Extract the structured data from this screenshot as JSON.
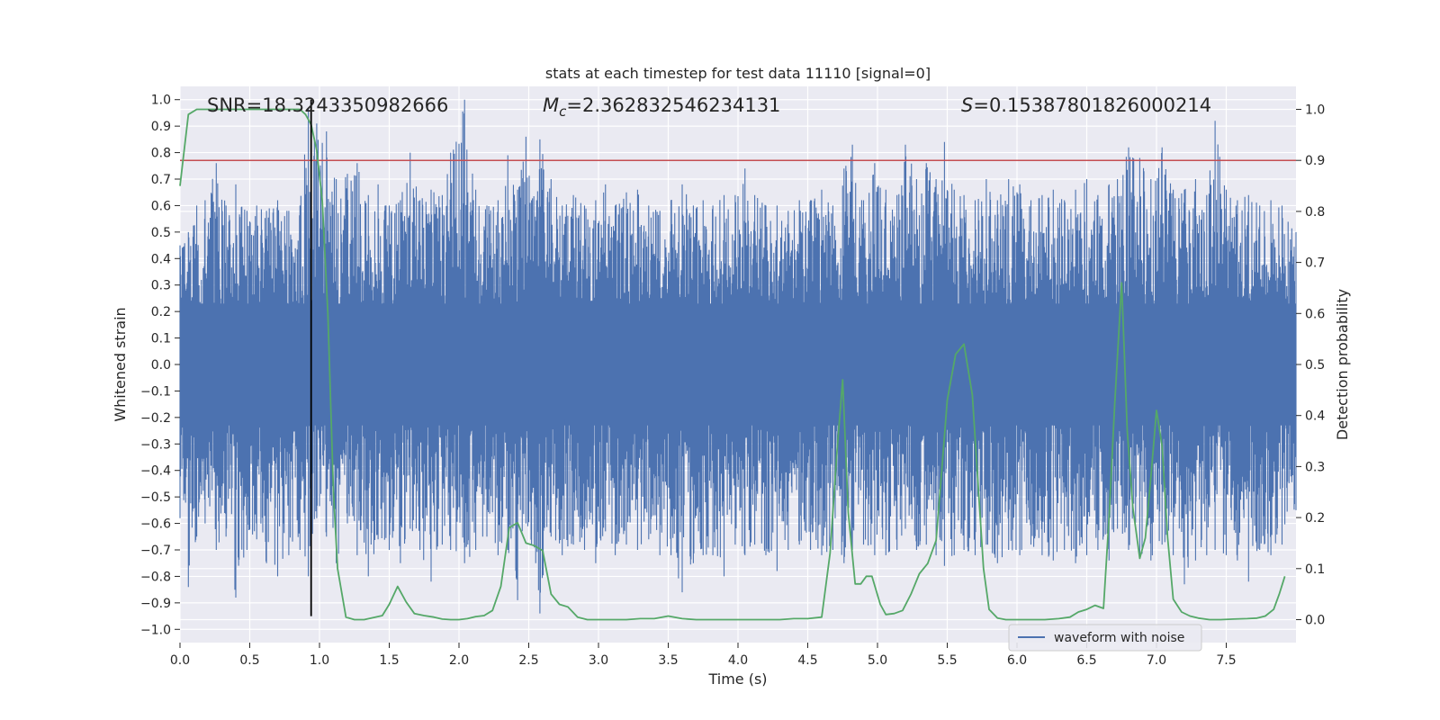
{
  "chart_data": {
    "type": "line",
    "title": "stats at each timestep for test data 11110 [signal=0]",
    "xlabel": "Time (s)",
    "ylabel": "Whitened strain",
    "y2label": "Detection probability",
    "xlim": [
      0.0,
      8.0
    ],
    "ylim": [
      -1.05,
      1.05
    ],
    "y2lim": [
      -0.045,
      1.045
    ],
    "xticks": [
      "0.0",
      "0.5",
      "1.0",
      "1.5",
      "2.0",
      "2.5",
      "3.0",
      "3.5",
      "4.0",
      "4.5",
      "5.0",
      "5.5",
      "6.0",
      "6.5",
      "7.0",
      "7.5"
    ],
    "xtick_values": [
      0.0,
      0.5,
      1.0,
      1.5,
      2.0,
      2.5,
      3.0,
      3.5,
      4.0,
      4.5,
      5.0,
      5.5,
      6.0,
      6.5,
      7.0,
      7.5
    ],
    "yticks": [
      "−1.0",
      "−0.9",
      "−0.8",
      "−0.7",
      "−0.6",
      "−0.5",
      "−0.4",
      "−0.3",
      "−0.2",
      "−0.1",
      "0.0",
      "0.1",
      "0.2",
      "0.3",
      "0.4",
      "0.5",
      "0.6",
      "0.7",
      "0.8",
      "0.9",
      "1.0"
    ],
    "ytick_values": [
      -1.0,
      -0.9,
      -0.8,
      -0.7,
      -0.6,
      -0.5,
      -0.4,
      -0.3,
      -0.2,
      -0.1,
      0.0,
      0.1,
      0.2,
      0.3,
      0.4,
      0.5,
      0.6,
      0.7,
      0.8,
      0.9,
      1.0
    ],
    "y2ticks": [
      "0.0",
      "0.1",
      "0.2",
      "0.3",
      "0.4",
      "0.5",
      "0.6",
      "0.7",
      "0.8",
      "0.9",
      "1.0"
    ],
    "y2tick_values": [
      0.0,
      0.1,
      0.2,
      0.3,
      0.4,
      0.5,
      0.6,
      0.7,
      0.8,
      0.9,
      1.0
    ],
    "annotations": {
      "snr": "SNR=18.3243350982666",
      "mc_prefix": "M",
      "mc_sub": "c",
      "mc_value": "=2.362832546234131",
      "s_prefix": "S",
      "s_value": "=0.15387801826000214"
    },
    "legend": {
      "label": "waveform with noise",
      "position": "lower-right"
    },
    "threshold_line": {
      "y2": 0.9,
      "color": "#c44e52"
    },
    "marker_line": {
      "x": 0.94,
      "y_from": -0.95,
      "y_to": 1.0,
      "color": "#000000"
    },
    "waveform": {
      "name": "waveform with noise",
      "color": "#4c72b0",
      "envelope_peaks": [
        [
          0.0,
          0.45,
          -0.58
        ],
        [
          0.06,
          0.5,
          -0.84
        ],
        [
          0.12,
          0.6,
          -0.65
        ],
        [
          0.18,
          0.62,
          -0.6
        ],
        [
          0.26,
          0.76,
          -0.7
        ],
        [
          0.33,
          0.6,
          -0.65
        ],
        [
          0.4,
          0.68,
          -0.88
        ],
        [
          0.48,
          0.58,
          -0.7
        ],
        [
          0.55,
          0.6,
          -0.66
        ],
        [
          0.62,
          0.58,
          -0.75
        ],
        [
          0.7,
          0.62,
          -0.8
        ],
        [
          0.78,
          0.58,
          -0.72
        ],
        [
          0.86,
          0.6,
          -0.7
        ],
        [
          0.92,
          0.97,
          -0.8
        ],
        [
          0.98,
          0.91,
          -0.58
        ],
        [
          1.05,
          0.88,
          -0.65
        ],
        [
          1.12,
          0.7,
          -0.75
        ],
        [
          1.2,
          0.72,
          -0.6
        ],
        [
          1.27,
          0.76,
          -0.72
        ],
        [
          1.35,
          0.64,
          -0.8
        ],
        [
          1.42,
          0.68,
          -0.66
        ],
        [
          1.5,
          0.6,
          -0.7
        ],
        [
          1.58,
          0.62,
          -0.75
        ],
        [
          1.65,
          0.8,
          -0.62
        ],
        [
          1.72,
          0.62,
          -0.7
        ],
        [
          1.8,
          0.66,
          -0.82
        ],
        [
          1.88,
          0.64,
          -0.68
        ],
        [
          1.94,
          0.8,
          -0.7
        ],
        [
          2.04,
          1.0,
          -0.75
        ],
        [
          2.12,
          0.66,
          -0.7
        ],
        [
          2.2,
          0.6,
          -0.65
        ],
        [
          2.28,
          0.62,
          -0.72
        ],
        [
          2.35,
          0.79,
          -0.7
        ],
        [
          2.42,
          0.66,
          -0.89
        ],
        [
          2.48,
          0.86,
          -0.6
        ],
        [
          2.52,
          0.62,
          -0.68
        ],
        [
          2.58,
          0.85,
          -0.94
        ],
        [
          2.66,
          0.7,
          -0.65
        ],
        [
          2.74,
          0.6,
          -0.72
        ],
        [
          2.82,
          0.64,
          -0.68
        ],
        [
          2.9,
          0.6,
          -0.7
        ],
        [
          2.98,
          0.62,
          -0.75
        ],
        [
          3.05,
          0.68,
          -0.63
        ],
        [
          3.12,
          0.6,
          -0.72
        ],
        [
          3.2,
          0.65,
          -0.68
        ],
        [
          3.28,
          0.66,
          -0.7
        ],
        [
          3.36,
          0.6,
          -0.66
        ],
        [
          3.44,
          0.58,
          -0.72
        ],
        [
          3.52,
          0.62,
          -0.72
        ],
        [
          3.6,
          0.68,
          -0.86
        ],
        [
          3.68,
          0.6,
          -0.75
        ],
        [
          3.75,
          0.62,
          -0.72
        ],
        [
          3.82,
          0.6,
          -0.72
        ],
        [
          3.9,
          0.64,
          -0.8
        ],
        [
          3.98,
          0.64,
          -0.68
        ],
        [
          4.05,
          0.74,
          -0.72
        ],
        [
          4.12,
          0.64,
          -0.68
        ],
        [
          4.2,
          0.6,
          -0.72
        ],
        [
          4.28,
          0.6,
          -0.78
        ],
        [
          4.36,
          0.58,
          -0.7
        ],
        [
          4.44,
          0.62,
          -0.68
        ],
        [
          4.52,
          0.62,
          -0.7
        ],
        [
          4.6,
          0.66,
          -0.72
        ],
        [
          4.68,
          0.6,
          -0.7
        ],
        [
          4.76,
          0.74,
          -0.75
        ],
        [
          4.82,
          0.83,
          -0.7
        ],
        [
          4.9,
          0.62,
          -0.68
        ],
        [
          4.98,
          0.76,
          -0.72
        ],
        [
          5.06,
          0.66,
          -0.72
        ],
        [
          5.14,
          0.64,
          -0.7
        ],
        [
          5.2,
          0.83,
          -0.62
        ],
        [
          5.28,
          0.7,
          -0.7
        ],
        [
          5.35,
          0.76,
          -0.68
        ],
        [
          5.42,
          0.7,
          -0.72
        ],
        [
          5.48,
          0.84,
          -0.76
        ],
        [
          5.55,
          0.66,
          -0.72
        ],
        [
          5.62,
          0.64,
          -0.7
        ],
        [
          5.7,
          0.62,
          -0.72
        ],
        [
          5.78,
          0.7,
          -0.68
        ],
        [
          5.86,
          0.62,
          -0.75
        ],
        [
          5.94,
          0.7,
          -0.7
        ],
        [
          6.02,
          0.68,
          -0.72
        ],
        [
          6.1,
          0.62,
          -0.68
        ],
        [
          6.18,
          0.64,
          -0.72
        ],
        [
          6.26,
          0.66,
          -0.74
        ],
        [
          6.34,
          0.62,
          -0.7
        ],
        [
          6.42,
          0.66,
          -0.75
        ],
        [
          6.5,
          0.7,
          -0.72
        ],
        [
          6.58,
          0.64,
          -0.7
        ],
        [
          6.66,
          0.68,
          -0.74
        ],
        [
          6.72,
          0.7,
          -0.62
        ],
        [
          6.8,
          0.82,
          -0.7
        ],
        [
          6.88,
          0.78,
          -0.72
        ],
        [
          6.96,
          0.7,
          -0.74
        ],
        [
          7.04,
          0.82,
          -0.68
        ],
        [
          7.12,
          0.66,
          -0.72
        ],
        [
          7.2,
          0.66,
          -0.83
        ],
        [
          7.28,
          0.7,
          -0.74
        ],
        [
          7.36,
          0.64,
          -0.72
        ],
        [
          7.42,
          0.92,
          -0.7
        ],
        [
          7.5,
          0.66,
          -0.72
        ],
        [
          7.58,
          0.62,
          -0.74
        ],
        [
          7.66,
          0.64,
          -0.82
        ],
        [
          7.74,
          0.6,
          -0.7
        ],
        [
          7.82,
          0.62,
          -0.72
        ],
        [
          7.9,
          0.6,
          -0.68
        ],
        [
          8.0,
          0.5,
          -0.55
        ]
      ]
    },
    "probability": {
      "color": "#55a868",
      "points": [
        [
          0.0,
          0.85
        ],
        [
          0.06,
          0.99
        ],
        [
          0.12,
          1.0
        ],
        [
          0.2,
          1.0
        ],
        [
          0.3,
          1.0
        ],
        [
          0.4,
          1.0
        ],
        [
          0.5,
          1.0
        ],
        [
          0.6,
          1.0
        ],
        [
          0.7,
          1.0
        ],
        [
          0.8,
          1.0
        ],
        [
          0.86,
          1.0
        ],
        [
          0.9,
          0.99
        ],
        [
          0.94,
          0.97
        ],
        [
          0.98,
          0.92
        ],
        [
          1.02,
          0.82
        ],
        [
          1.06,
          0.6
        ],
        [
          1.1,
          0.25
        ],
        [
          1.13,
          0.1
        ],
        [
          1.19,
          0.005
        ],
        [
          1.25,
          0.0
        ],
        [
          1.32,
          0.0
        ],
        [
          1.4,
          0.005
        ],
        [
          1.45,
          0.008
        ],
        [
          1.5,
          0.03
        ],
        [
          1.56,
          0.065
        ],
        [
          1.62,
          0.035
        ],
        [
          1.68,
          0.012
        ],
        [
          1.75,
          0.008
        ],
        [
          1.82,
          0.005
        ],
        [
          1.88,
          0.001
        ],
        [
          1.94,
          0.0
        ],
        [
          2.0,
          0.0
        ],
        [
          2.06,
          0.002
        ],
        [
          2.12,
          0.006
        ],
        [
          2.18,
          0.008
        ],
        [
          2.24,
          0.018
        ],
        [
          2.3,
          0.065
        ],
        [
          2.36,
          0.18
        ],
        [
          2.42,
          0.19
        ],
        [
          2.48,
          0.15
        ],
        [
          2.54,
          0.145
        ],
        [
          2.6,
          0.135
        ],
        [
          2.66,
          0.05
        ],
        [
          2.72,
          0.03
        ],
        [
          2.78,
          0.025
        ],
        [
          2.85,
          0.005
        ],
        [
          2.92,
          0.0
        ],
        [
          3.0,
          0.0
        ],
        [
          3.1,
          0.0
        ],
        [
          3.2,
          0.0
        ],
        [
          3.3,
          0.002
        ],
        [
          3.4,
          0.002
        ],
        [
          3.5,
          0.007
        ],
        [
          3.6,
          0.002
        ],
        [
          3.7,
          0.0
        ],
        [
          3.8,
          0.0
        ],
        [
          3.9,
          0.0
        ],
        [
          4.0,
          0.0
        ],
        [
          4.1,
          0.0
        ],
        [
          4.2,
          0.0
        ],
        [
          4.3,
          0.0
        ],
        [
          4.4,
          0.002
        ],
        [
          4.5,
          0.002
        ],
        [
          4.6,
          0.005
        ],
        [
          4.66,
          0.13
        ],
        [
          4.71,
          0.33
        ],
        [
          4.75,
          0.47
        ],
        [
          4.79,
          0.21
        ],
        [
          4.84,
          0.07
        ],
        [
          4.88,
          0.07
        ],
        [
          4.92,
          0.085
        ],
        [
          4.96,
          0.085
        ],
        [
          5.02,
          0.03
        ],
        [
          5.06,
          0.01
        ],
        [
          5.12,
          0.012
        ],
        [
          5.18,
          0.018
        ],
        [
          5.24,
          0.05
        ],
        [
          5.3,
          0.09
        ],
        [
          5.36,
          0.11
        ],
        [
          5.42,
          0.155
        ],
        [
          5.46,
          0.29
        ],
        [
          5.5,
          0.43
        ],
        [
          5.56,
          0.52
        ],
        [
          5.62,
          0.54
        ],
        [
          5.68,
          0.44
        ],
        [
          5.72,
          0.27
        ],
        [
          5.76,
          0.1
        ],
        [
          5.8,
          0.02
        ],
        [
          5.86,
          0.003
        ],
        [
          5.92,
          0.0
        ],
        [
          6.0,
          0.0
        ],
        [
          6.1,
          0.0
        ],
        [
          6.2,
          0.0
        ],
        [
          6.3,
          0.002
        ],
        [
          6.38,
          0.005
        ],
        [
          6.44,
          0.015
        ],
        [
          6.5,
          0.02
        ],
        [
          6.56,
          0.028
        ],
        [
          6.62,
          0.022
        ],
        [
          6.66,
          0.2
        ],
        [
          6.7,
          0.42
        ],
        [
          6.75,
          0.66
        ],
        [
          6.79,
          0.37
        ],
        [
          6.83,
          0.22
        ],
        [
          6.88,
          0.12
        ],
        [
          6.92,
          0.16
        ],
        [
          6.96,
          0.28
        ],
        [
          7.0,
          0.41
        ],
        [
          7.04,
          0.34
        ],
        [
          7.08,
          0.16
        ],
        [
          7.12,
          0.04
        ],
        [
          7.18,
          0.015
        ],
        [
          7.24,
          0.007
        ],
        [
          7.3,
          0.003
        ],
        [
          7.38,
          0.0
        ],
        [
          7.46,
          0.0
        ],
        [
          7.55,
          0.001
        ],
        [
          7.65,
          0.002
        ],
        [
          7.72,
          0.003
        ],
        [
          7.78,
          0.007
        ],
        [
          7.84,
          0.02
        ],
        [
          7.88,
          0.05
        ],
        [
          7.92,
          0.085
        ]
      ]
    }
  }
}
